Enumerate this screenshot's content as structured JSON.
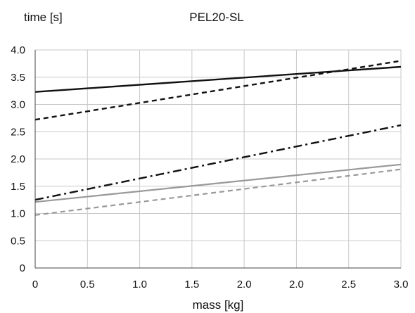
{
  "chart_data": {
    "type": "line",
    "title": "PEL20-SL",
    "xlabel": "mass [kg]",
    "ylabel": "time [s]",
    "x_tick_labels": [
      "0",
      "0.5",
      "1.0",
      "1.5",
      "2.0",
      "2.0",
      "2.5",
      "3.0"
    ],
    "y_tick_labels": [
      "0",
      "0.5",
      "1.0",
      "1.5",
      "2.0",
      "2.5",
      "3.0",
      "3.5",
      "4.0"
    ],
    "xlim": [
      0,
      3.0
    ],
    "ylim": [
      0,
      4.0
    ],
    "grid": true,
    "legend": "none",
    "series": [
      {
        "x": [
          0,
          3.0
        ],
        "y": [
          3.23,
          3.69
        ],
        "color": "#111111",
        "style": "solid"
      },
      {
        "x": [
          0,
          3.0
        ],
        "y": [
          2.72,
          3.8
        ],
        "color": "#111111",
        "style": "dashed"
      },
      {
        "x": [
          0,
          3.0
        ],
        "y": [
          1.25,
          2.62
        ],
        "color": "#111111",
        "style": "dashdot"
      },
      {
        "x": [
          0,
          3.0
        ],
        "y": [
          1.21,
          1.9
        ],
        "color": "#999999",
        "style": "solid"
      },
      {
        "x": [
          0,
          3.0
        ],
        "y": [
          0.97,
          1.81
        ],
        "color": "#999999",
        "style": "dashed"
      }
    ]
  }
}
